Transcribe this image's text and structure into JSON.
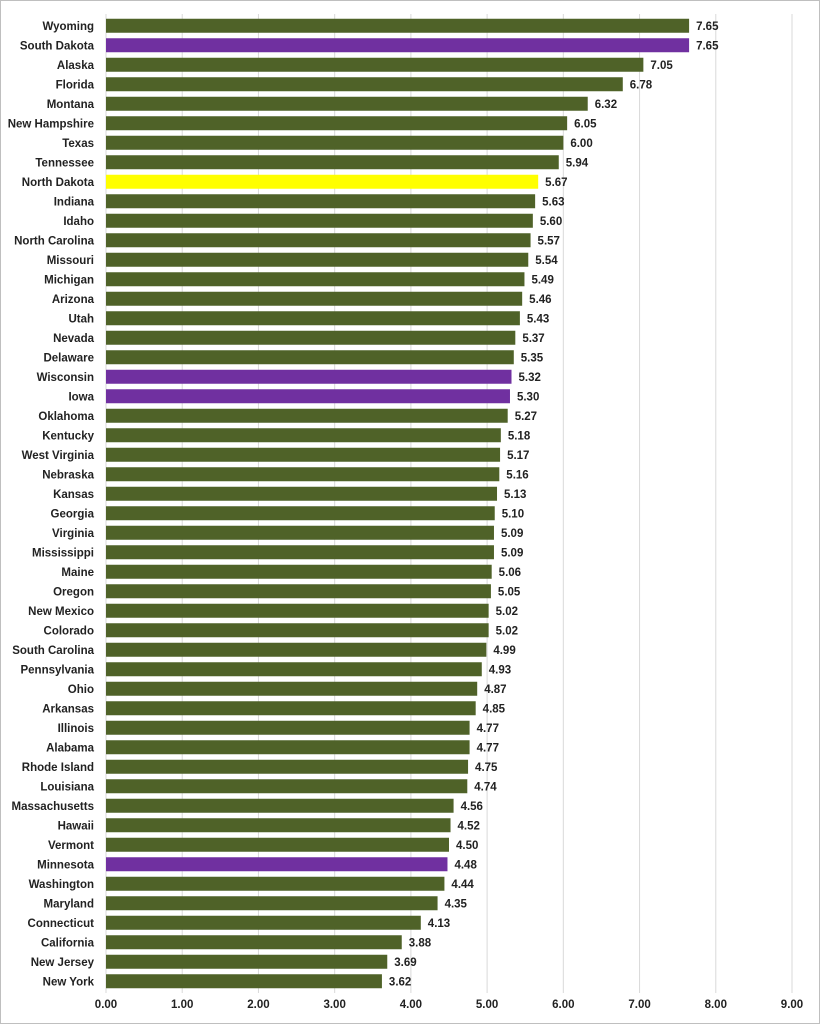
{
  "chart_data": {
    "type": "bar",
    "orientation": "horizontal",
    "categories": [
      "Wyoming",
      "South Dakota",
      "Alaska",
      "Florida",
      "Montana",
      "New Hampshire",
      "Texas",
      "Tennessee",
      "North Dakota",
      "Indiana",
      "Idaho",
      "North Carolina",
      "Missouri",
      "Michigan",
      "Arizona",
      "Utah",
      "Nevada",
      "Delaware",
      "Wisconsin",
      "Iowa",
      "Oklahoma",
      "Kentucky",
      "West Virginia",
      "Nebraska",
      "Kansas",
      "Georgia",
      "Virginia",
      "Mississippi",
      "Maine",
      "Oregon",
      "New Mexico",
      "Colorado",
      "South Carolina",
      "Pennsylvania",
      "Ohio",
      "Arkansas",
      "Illinois",
      "Alabama",
      "Rhode Island",
      "Louisiana",
      "Massachusetts",
      "Hawaii",
      "Vermont",
      "Minnesota",
      "Washington",
      "Maryland",
      "Connecticut",
      "California",
      "New Jersey",
      "New York"
    ],
    "values": [
      7.65,
      7.65,
      7.05,
      6.78,
      6.32,
      6.05,
      6.0,
      5.94,
      5.67,
      5.63,
      5.6,
      5.57,
      5.54,
      5.49,
      5.46,
      5.43,
      5.37,
      5.35,
      5.32,
      5.3,
      5.27,
      5.18,
      5.17,
      5.16,
      5.13,
      5.1,
      5.09,
      5.09,
      5.06,
      5.05,
      5.02,
      5.02,
      4.99,
      4.93,
      4.87,
      4.85,
      4.77,
      4.77,
      4.75,
      4.74,
      4.56,
      4.52,
      4.5,
      4.48,
      4.44,
      4.35,
      4.13,
      3.88,
      3.69,
      3.62
    ],
    "value_labels": [
      "7.65",
      "7.65",
      "7.05",
      "6.78",
      "6.32",
      "6.05",
      "6.00",
      "5.94",
      "5.67",
      "5.63",
      "5.60",
      "5.57",
      "5.54",
      "5.49",
      "5.46",
      "5.43",
      "5.37",
      "5.35",
      "5.32",
      "5.30",
      "5.27",
      "5.18",
      "5.17",
      "5.16",
      "5.13",
      "5.10",
      "5.09",
      "5.09",
      "5.06",
      "5.05",
      "5.02",
      "5.02",
      "4.99",
      "4.93",
      "4.87",
      "4.85",
      "4.77",
      "4.77",
      "4.75",
      "4.74",
      "4.56",
      "4.52",
      "4.50",
      "4.48",
      "4.44",
      "4.35",
      "4.13",
      "3.88",
      "3.69",
      "3.62"
    ],
    "bar_colors": {
      "default": "#4f6228",
      "highlighted_purple": "#7030a0",
      "highlighted_yellow": "#ffff00"
    },
    "highlights": {
      "South Dakota": "highlighted_purple",
      "Wisconsin": "highlighted_purple",
      "Iowa": "highlighted_purple",
      "Minnesota": "highlighted_purple",
      "North Dakota": "highlighted_yellow"
    },
    "x_ticks": [
      "0.00",
      "1.00",
      "2.00",
      "3.00",
      "4.00",
      "5.00",
      "6.00",
      "7.00",
      "8.00",
      "9.00"
    ],
    "xlim": [
      0,
      9
    ],
    "grid": "vertical",
    "title": "",
    "xlabel": "",
    "ylabel": ""
  }
}
